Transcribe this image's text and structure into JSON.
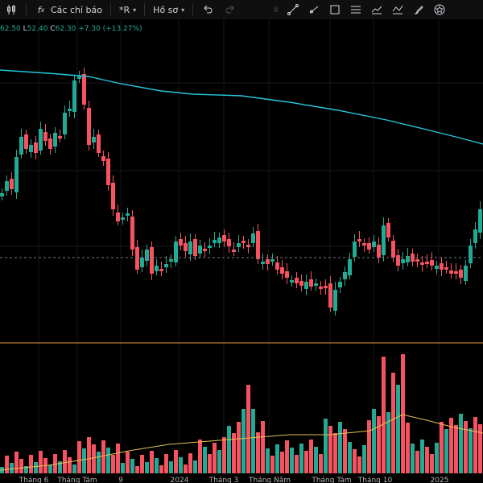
{
  "toolbar": {
    "indicators_label": "Các chỉ báo",
    "replay_label": "*R",
    "profile_label": "Hồ sơ",
    "tools": [
      "trend-line-icon",
      "ray-icon",
      "rectangle-icon",
      "pitchfork-icon",
      "fib-icon",
      "projection-icon",
      "brush-icon",
      "star-icon"
    ]
  },
  "ohlc": {
    "o_value": "62.50",
    "l_label": "L",
    "l_value": "52.40",
    "c_label": "C",
    "c_value": "62.30",
    "change": "+7.30 (+13.27%)"
  },
  "colors": {
    "up": "#22ab94",
    "down": "#f7525f",
    "ma": "#26c6da",
    "vol_ma": "#e5c158",
    "divider": "#b8762b"
  },
  "x_axis": {
    "labels": [
      "Tháng 6",
      "Tháng Tám",
      "9",
      "2024",
      "Tháng 3",
      "Tháng Năm",
      "Tháng Tám",
      "Tháng 10",
      "2025"
    ]
  }
}
